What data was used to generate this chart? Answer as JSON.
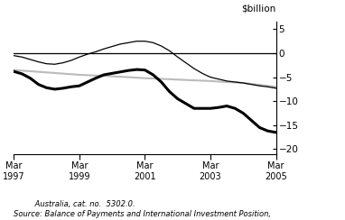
{
  "ylabel": "$billion",
  "ylim": [
    -21,
    6.5
  ],
  "yticks": [
    5,
    0,
    -5,
    -10,
    -15,
    -20
  ],
  "source_line1": "Source: Balance of Payments and International Investment Position,",
  "source_line2": "         Australia, cat. no.  5302.0.",
  "xtick_labels": [
    "Mar\n1997",
    "Mar\n1999",
    "Mar\n2001",
    "Mar\n2003",
    "Mar\n2005"
  ],
  "xtick_positions": [
    0,
    8,
    16,
    24,
    32
  ],
  "background_color": "#ffffff",
  "current_account": {
    "color": "#000000",
    "linewidth": 2.2,
    "x": [
      0,
      1,
      2,
      3,
      4,
      5,
      6,
      7,
      8,
      9,
      10,
      11,
      12,
      13,
      14,
      15,
      16,
      17,
      18,
      19,
      20,
      21,
      22,
      23,
      24,
      25,
      26,
      27,
      28,
      29,
      30,
      31,
      32
    ],
    "y": [
      -3.8,
      -4.3,
      -5.2,
      -6.5,
      -7.2,
      -7.5,
      -7.3,
      -7.0,
      -6.8,
      -6.0,
      -5.2,
      -4.5,
      -4.2,
      -3.9,
      -3.6,
      -3.4,
      -3.5,
      -4.5,
      -6.0,
      -8.0,
      -9.5,
      -10.5,
      -11.5,
      -11.5,
      -11.5,
      -11.3,
      -11.0,
      -11.5,
      -12.5,
      -14.0,
      -15.5,
      -16.2,
      -16.5
    ]
  },
  "goods_services": {
    "color": "#000000",
    "linewidth": 0.9,
    "x": [
      0,
      1,
      2,
      3,
      4,
      5,
      6,
      7,
      8,
      9,
      10,
      11,
      12,
      13,
      14,
      15,
      16,
      17,
      18,
      19,
      20,
      21,
      22,
      23,
      24,
      25,
      26,
      27,
      28,
      29,
      30,
      31,
      32
    ],
    "y": [
      -0.5,
      -0.8,
      -1.3,
      -1.8,
      -2.2,
      -2.3,
      -2.0,
      -1.5,
      -0.8,
      -0.2,
      0.3,
      0.9,
      1.4,
      1.9,
      2.2,
      2.5,
      2.5,
      2.2,
      1.5,
      0.5,
      -0.8,
      -2.0,
      -3.2,
      -4.2,
      -5.0,
      -5.4,
      -5.8,
      -6.0,
      -6.2,
      -6.5,
      -6.8,
      -7.0,
      -7.3
    ]
  },
  "net_income": {
    "color": "#bbbbbb",
    "linewidth": 1.5,
    "x": [
      0,
      4,
      8,
      12,
      16,
      20,
      24,
      28,
      32
    ],
    "y": [
      -3.5,
      -4.0,
      -4.5,
      -4.8,
      -5.2,
      -5.5,
      -5.8,
      -6.2,
      -7.0
    ]
  }
}
